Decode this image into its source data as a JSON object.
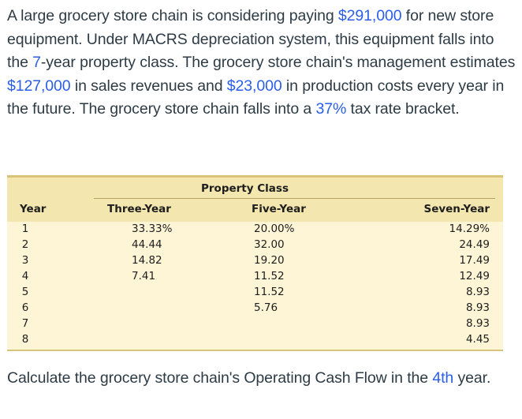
{
  "question": {
    "p1": "A large grocery store chain is considering paying ",
    "amount_equipment": "$291,000",
    "p2": " for new store equipment. Under MACRS depreciation system, this equipment falls into the ",
    "class_years": "7",
    "p3": "-year property class. The grocery store chain's management estimates ",
    "amount_revenue": "$127,000",
    "p4": " in sales revenues and ",
    "amount_costs": "$23,000",
    "p5": " in production costs every year in the future. The grocery store chain falls into a ",
    "tax_rate": "37%",
    "p6": " tax rate bracket."
  },
  "table": {
    "group_header": "Property Class",
    "headers": {
      "year": "Year",
      "three": "Three-Year",
      "five": "Five-Year",
      "seven": "Seven-Year"
    },
    "rows": [
      {
        "year": "1",
        "three": "33.33%",
        "five": "20.00%",
        "seven": "14.29%"
      },
      {
        "year": "2",
        "three": "44.44",
        "five": "32.00",
        "seven": "24.49"
      },
      {
        "year": "3",
        "three": "14.82",
        "five": "19.20",
        "seven": "17.49"
      },
      {
        "year": "4",
        "three": "7.41",
        "five": "11.52",
        "seven": "12.49"
      },
      {
        "year": "5",
        "three": "",
        "five": "11.52",
        "seven": "8.93"
      },
      {
        "year": "6",
        "three": "",
        "five": "5.76",
        "seven": "8.93"
      },
      {
        "year": "7",
        "three": "",
        "five": "",
        "seven": "8.93"
      },
      {
        "year": "8",
        "three": "",
        "five": "",
        "seven": "4.45"
      }
    ]
  },
  "prompt": {
    "p1": "Calculate the grocery store chain's Operating Cash Flow in the ",
    "year": "4th",
    "p2": " year."
  }
}
